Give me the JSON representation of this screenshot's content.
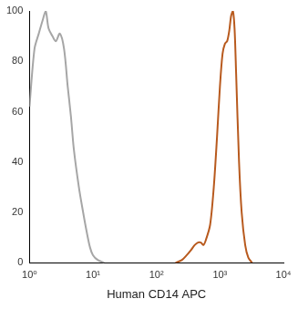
{
  "chart_data": {
    "type": "line",
    "x_label": "Human CD14 APC",
    "log": "x",
    "grid": false,
    "xlim": [
      1,
      10000
    ],
    "xticks": [
      {
        "value": 1,
        "label": "10⁰"
      },
      {
        "value": 10,
        "label": "10¹"
      },
      {
        "value": 100,
        "label": "10²"
      },
      {
        "value": 1000,
        "label": "10³"
      },
      {
        "value": 10000,
        "label": "10⁴"
      }
    ],
    "ylim": [
      0,
      100
    ],
    "yticks": [
      0,
      20,
      40,
      60,
      80,
      100
    ],
    "x": [
      1,
      1.2,
      1.4,
      1.6,
      1.8,
      2,
      2.3,
      2.6,
      3,
      3.5,
      4,
      4.5,
      5,
      6,
      7,
      8,
      9,
      10,
      12,
      15,
      200,
      250,
      300,
      350,
      400,
      450,
      500,
      550,
      600,
      700,
      800,
      900,
      1000,
      1100,
      1200,
      1300,
      1400,
      1500,
      1600,
      1700,
      1800,
      2000,
      2200,
      2500,
      2800,
      3200
    ],
    "series": [
      {
        "color": "#a6a6a6",
        "values": [
          62,
          85,
          91,
          96,
          100,
          93,
          90,
          88,
          91,
          85,
          70,
          58,
          45,
          30,
          20,
          12,
          6,
          3,
          1,
          0,
          null,
          null,
          null,
          null,
          null,
          null,
          null,
          null,
          null,
          null,
          null,
          null,
          null,
          null,
          null,
          null,
          null,
          null,
          null,
          null,
          null,
          null,
          null,
          null,
          null,
          null
        ]
      },
      {
        "color": "#b85a1e",
        "values": [
          null,
          null,
          null,
          null,
          null,
          null,
          null,
          null,
          null,
          null,
          null,
          null,
          null,
          null,
          null,
          null,
          null,
          null,
          null,
          null,
          0,
          1,
          3,
          5,
          7,
          8,
          8,
          7,
          9,
          15,
          30,
          50,
          70,
          83,
          87,
          88,
          92,
          98,
          100,
          93,
          75,
          40,
          20,
          7,
          2,
          0
        ]
      }
    ]
  }
}
